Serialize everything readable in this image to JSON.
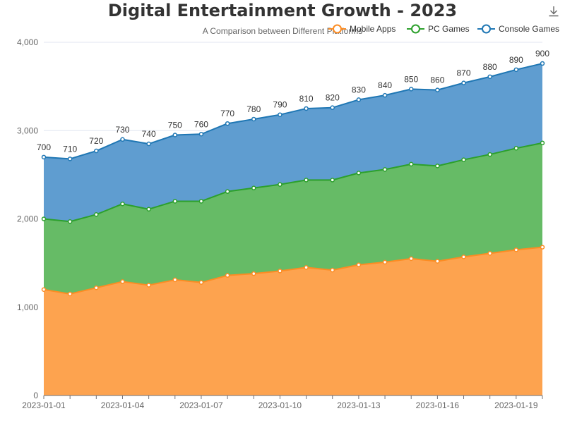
{
  "chart_data": {
    "type": "area",
    "stacked": true,
    "title": "Digital Entertainment Growth - 2023",
    "subtitle": "A Comparison between Different Platforms",
    "x": [
      "2023-01-01",
      "2023-01-02",
      "2023-01-03",
      "2023-01-04",
      "2023-01-05",
      "2023-01-06",
      "2023-01-07",
      "2023-01-08",
      "2023-01-09",
      "2023-01-10",
      "2023-01-11",
      "2023-01-12",
      "2023-01-13",
      "2023-01-14",
      "2023-01-15",
      "2023-01-16",
      "2023-01-17",
      "2023-01-18",
      "2023-01-19",
      "2023-01-20"
    ],
    "x_tick_labels": [
      "2023-01-01",
      "2023-01-04",
      "2023-01-07",
      "2023-01-10",
      "2023-01-13",
      "2023-01-16",
      "2023-01-19"
    ],
    "series": [
      {
        "name": "Mobile Apps",
        "color": "#fc8c23",
        "fill": "#fda34f",
        "values": [
          1200,
          1150,
          1220,
          1290,
          1250,
          1310,
          1280,
          1360,
          1380,
          1410,
          1450,
          1420,
          1480,
          1510,
          1550,
          1520,
          1570,
          1610,
          1650,
          1680
        ]
      },
      {
        "name": "PC Games",
        "color": "#2ca02c",
        "fill": "#66bb66",
        "values": [
          800,
          820,
          830,
          880,
          860,
          890,
          920,
          950,
          970,
          980,
          990,
          1020,
          1040,
          1050,
          1070,
          1080,
          1100,
          1120,
          1150,
          1180
        ]
      },
      {
        "name": "Console Games",
        "color": "#1f77b4",
        "fill": "#5f9dd0",
        "values": [
          700,
          710,
          720,
          730,
          740,
          750,
          760,
          770,
          780,
          790,
          810,
          820,
          830,
          840,
          850,
          860,
          870,
          880,
          890,
          900
        ]
      }
    ],
    "data_labels_series": "Console Games",
    "ylim": [
      0,
      4000
    ],
    "y_ticks": [
      0,
      1000,
      2000,
      3000,
      4000
    ],
    "y_tick_labels": [
      "0",
      "1,000",
      "2,000",
      "3,000",
      "4,000"
    ],
    "grid": true,
    "legend": "top-right"
  },
  "toolbar": {
    "download_icon": "download-icon"
  }
}
